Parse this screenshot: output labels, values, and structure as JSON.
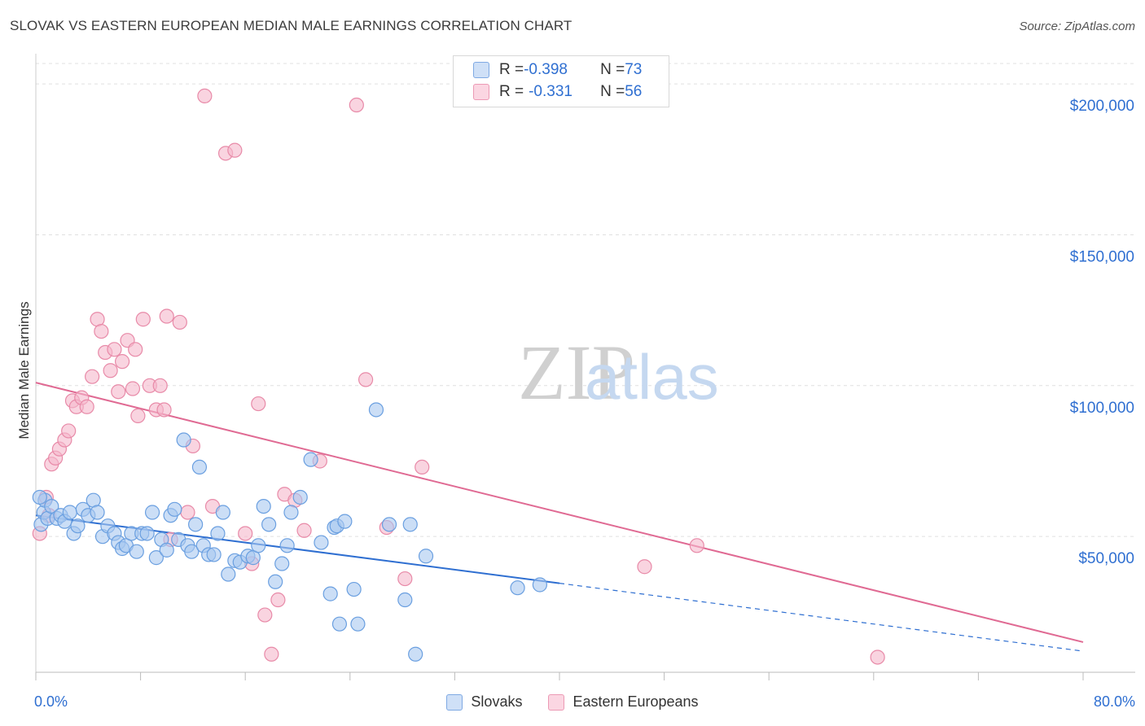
{
  "header": {
    "title": "SLOVAK VS EASTERN EUROPEAN MEDIAN MALE EARNINGS CORRELATION CHART",
    "source": "Source: ZipAtlas.com"
  },
  "watermark": {
    "zip": "ZIP",
    "atlas": "atlas"
  },
  "legend_top": {
    "rows": [
      {
        "r_label": "R = ",
        "r_value": "-0.398",
        "n_label": "N = ",
        "n_value": "73",
        "color": "#a8c8f0"
      },
      {
        "r_label": "R = ",
        "r_value": "-0.331",
        "n_label": "N = ",
        "n_value": "56",
        "color": "#f5b8cb"
      }
    ]
  },
  "x_axis": {
    "min_label": "0.0%",
    "max_label": "80.0%"
  },
  "colors": {
    "blue_fill": "#a8c8f0",
    "blue_stroke": "#6a9fe0",
    "blue_line": "#2f6fd1",
    "pink_fill": "#f5b8cb",
    "pink_stroke": "#e88aa8",
    "pink_line": "#e06a93",
    "tick_text": "#2f6fd1",
    "grid": "#e0e0e0"
  },
  "chart_data": {
    "type": "scatter",
    "title": "SLOVAK VS EASTERN EUROPEAN MEDIAN MALE EARNINGS CORRELATION CHART",
    "xlabel": "",
    "ylabel": "Median Male Earnings",
    "xlim": [
      0,
      80
    ],
    "ylim": [
      5000,
      210000
    ],
    "y_ticks": [
      {
        "value": 50000,
        "label": "$50,000"
      },
      {
        "value": 100000,
        "label": "$100,000"
      },
      {
        "value": 150000,
        "label": "$150,000"
      },
      {
        "value": 200000,
        "label": "$200,000"
      }
    ],
    "grid": true,
    "legend_position": "bottom",
    "series": [
      {
        "name": "Slovaks",
        "color": "#a8c8f0",
        "trend": {
          "x0": 0,
          "y0": 57000,
          "x1": 40,
          "y1": 34500,
          "dash_to": 80,
          "dash_y": 12000
        },
        "points": [
          [
            0.4,
            54000
          ],
          [
            0.6,
            58000
          ],
          [
            0.7,
            62000
          ],
          [
            0.9,
            56000
          ],
          [
            1.2,
            60000
          ],
          [
            1.6,
            56000
          ],
          [
            1.9,
            57000
          ],
          [
            2.2,
            55000
          ],
          [
            2.6,
            58000
          ],
          [
            2.9,
            51000
          ],
          [
            3.2,
            53500
          ],
          [
            3.6,
            59000
          ],
          [
            4.0,
            57000
          ],
          [
            4.4,
            62000
          ],
          [
            4.7,
            58000
          ],
          [
            5.1,
            50000
          ],
          [
            5.5,
            53500
          ],
          [
            6.0,
            51000
          ],
          [
            6.3,
            48000
          ],
          [
            6.6,
            46000
          ],
          [
            6.9,
            47000
          ],
          [
            7.3,
            51000
          ],
          [
            7.7,
            45000
          ],
          [
            8.1,
            51000
          ],
          [
            8.5,
            51000
          ],
          [
            8.9,
            58000
          ],
          [
            9.2,
            43000
          ],
          [
            9.6,
            49000
          ],
          [
            10.0,
            45500
          ],
          [
            10.3,
            57000
          ],
          [
            10.6,
            59000
          ],
          [
            10.9,
            49000
          ],
          [
            11.3,
            82000
          ],
          [
            11.6,
            47000
          ],
          [
            11.9,
            45000
          ],
          [
            12.2,
            54000
          ],
          [
            12.5,
            73000
          ],
          [
            12.8,
            47000
          ],
          [
            13.2,
            44000
          ],
          [
            13.6,
            44000
          ],
          [
            13.9,
            51000
          ],
          [
            14.3,
            58000
          ],
          [
            14.7,
            37500
          ],
          [
            15.2,
            42000
          ],
          [
            15.6,
            41500
          ],
          [
            16.2,
            43500
          ],
          [
            16.6,
            43000
          ],
          [
            17.0,
            47000
          ],
          [
            17.4,
            60000
          ],
          [
            17.8,
            54000
          ],
          [
            18.3,
            35000
          ],
          [
            18.8,
            41000
          ],
          [
            19.2,
            47000
          ],
          [
            19.5,
            58000
          ],
          [
            20.2,
            63000
          ],
          [
            21.0,
            75500
          ],
          [
            21.8,
            48000
          ],
          [
            22.5,
            31000
          ],
          [
            22.8,
            53000
          ],
          [
            23.0,
            53500
          ],
          [
            23.6,
            55000
          ],
          [
            23.2,
            21000
          ],
          [
            24.3,
            32500
          ],
          [
            24.6,
            21000
          ],
          [
            26.0,
            92000
          ],
          [
            27.0,
            54000
          ],
          [
            28.2,
            29000
          ],
          [
            28.6,
            54000
          ],
          [
            29.0,
            11000
          ],
          [
            29.8,
            43500
          ],
          [
            36.8,
            33000
          ],
          [
            38.5,
            34000
          ],
          [
            0.3,
            63000
          ]
        ]
      },
      {
        "name": "Eastern Europeans",
        "color": "#f5b8cb",
        "trend": {
          "x0": 0,
          "y0": 101000,
          "x1": 80,
          "y1": 15000
        },
        "points": [
          [
            0.3,
            51000
          ],
          [
            0.8,
            63000
          ],
          [
            1.0,
            57000
          ],
          [
            1.2,
            74000
          ],
          [
            1.5,
            76000
          ],
          [
            1.8,
            79000
          ],
          [
            2.2,
            82000
          ],
          [
            2.5,
            85000
          ],
          [
            2.8,
            95000
          ],
          [
            3.1,
            93000
          ],
          [
            3.5,
            96000
          ],
          [
            3.9,
            93000
          ],
          [
            4.3,
            103000
          ],
          [
            4.7,
            122000
          ],
          [
            5.0,
            118000
          ],
          [
            5.3,
            111000
          ],
          [
            5.7,
            105000
          ],
          [
            6.0,
            112000
          ],
          [
            6.3,
            98000
          ],
          [
            6.6,
            108000
          ],
          [
            7.0,
            115000
          ],
          [
            7.4,
            99000
          ],
          [
            7.8,
            90000
          ],
          [
            7.6,
            112000
          ],
          [
            8.2,
            122000
          ],
          [
            8.7,
            100000
          ],
          [
            9.2,
            92000
          ],
          [
            9.5,
            100000
          ],
          [
            9.8,
            92000
          ],
          [
            10.0,
            123000
          ],
          [
            10.3,
            49000
          ],
          [
            11.0,
            121000
          ],
          [
            11.6,
            58000
          ],
          [
            12.0,
            80000
          ],
          [
            12.9,
            196000
          ],
          [
            13.5,
            60000
          ],
          [
            14.5,
            177000
          ],
          [
            15.2,
            178000
          ],
          [
            16.0,
            51000
          ],
          [
            16.5,
            41000
          ],
          [
            17.0,
            94000
          ],
          [
            17.5,
            24000
          ],
          [
            18.0,
            11000
          ],
          [
            18.5,
            29000
          ],
          [
            19.0,
            64000
          ],
          [
            19.8,
            62000
          ],
          [
            20.5,
            52000
          ],
          [
            21.7,
            75000
          ],
          [
            24.5,
            193000
          ],
          [
            25.2,
            102000
          ],
          [
            26.8,
            53000
          ],
          [
            28.2,
            36000
          ],
          [
            29.5,
            73000
          ],
          [
            46.5,
            40000
          ],
          [
            50.5,
            47000
          ],
          [
            64.3,
            10000
          ]
        ]
      }
    ]
  }
}
